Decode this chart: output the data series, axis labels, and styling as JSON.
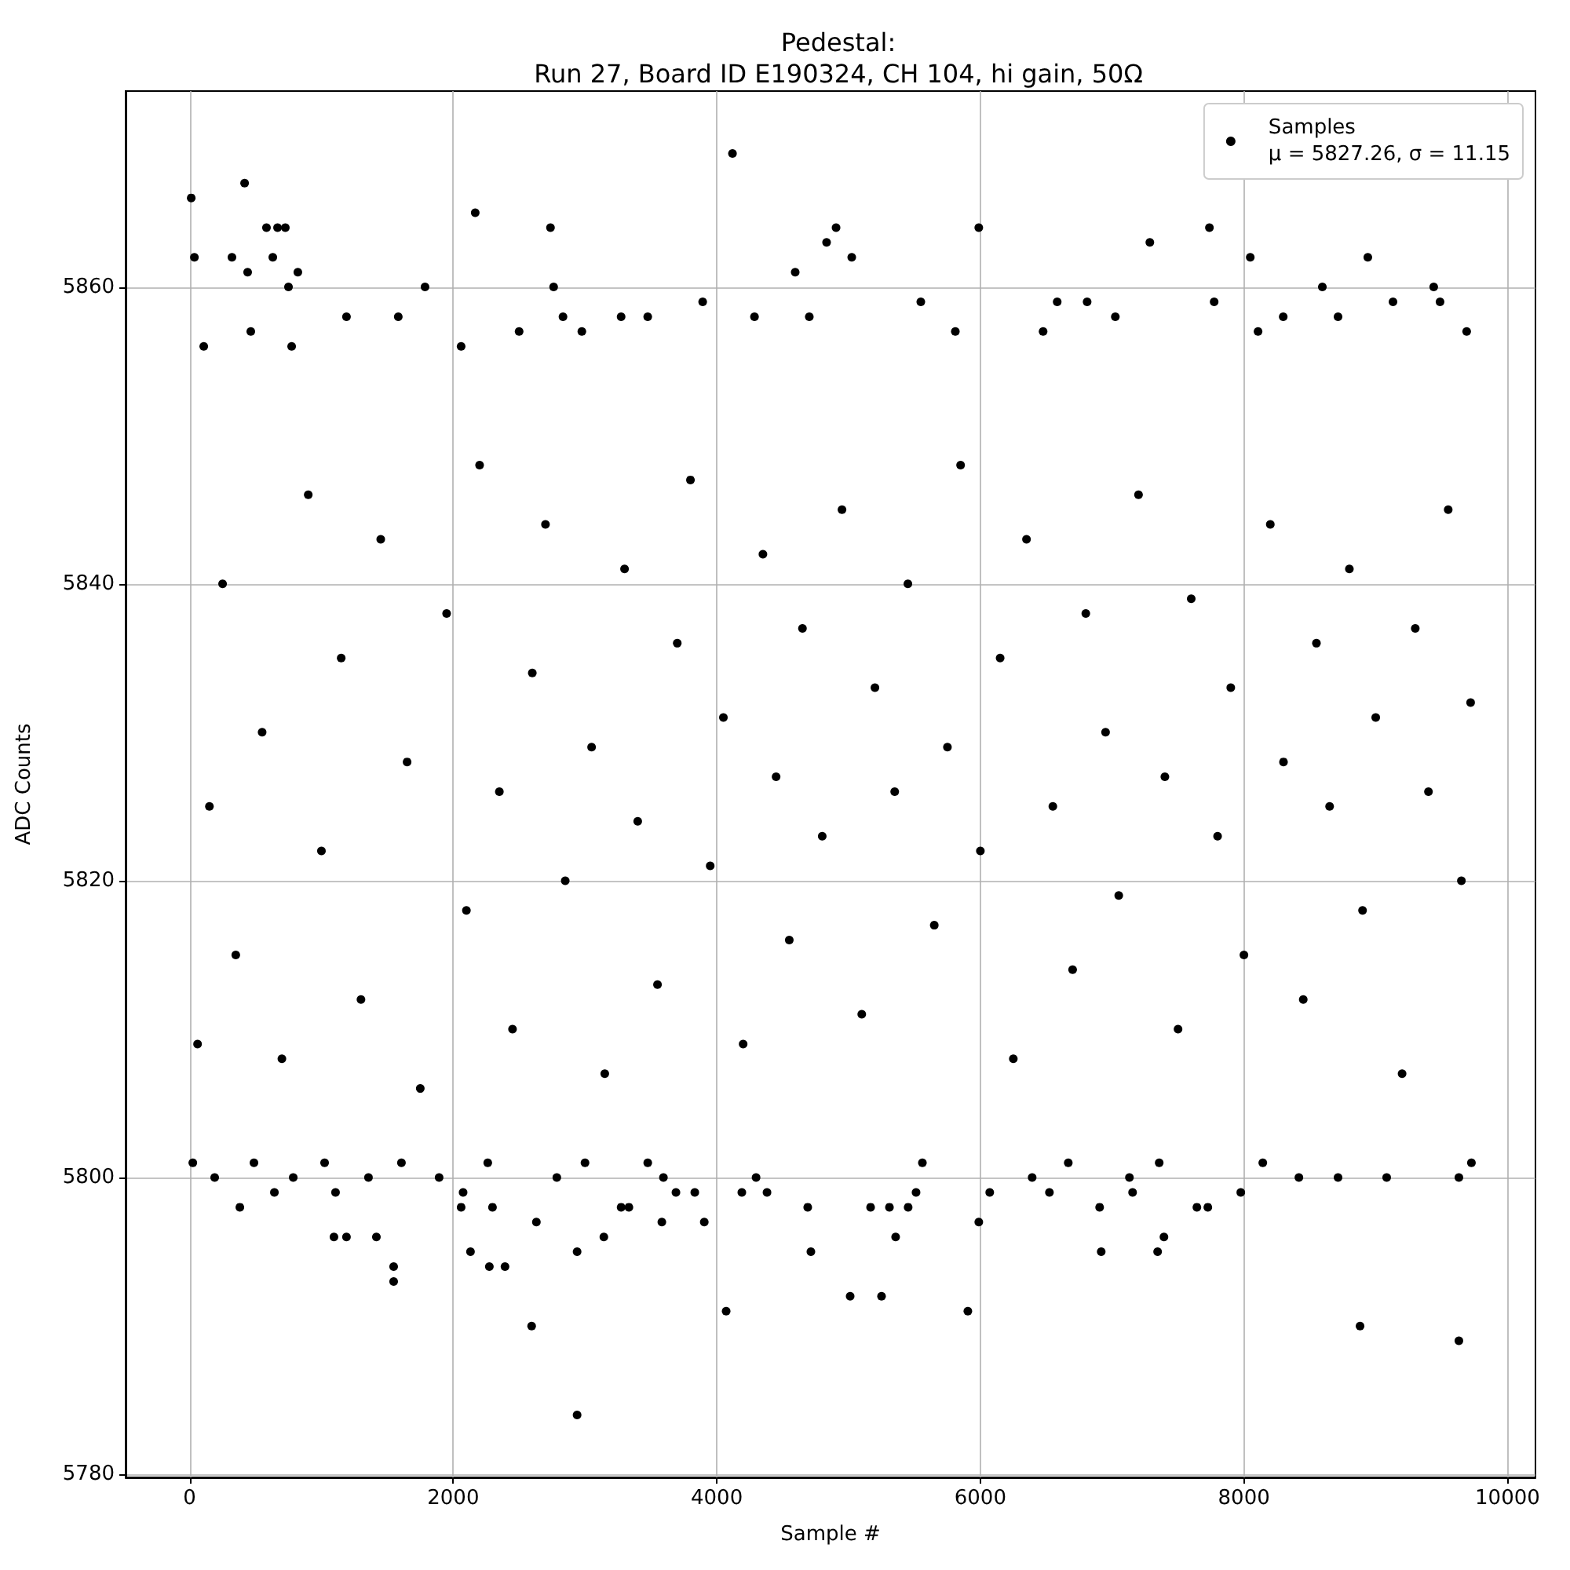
{
  "chart_data": {
    "type": "scatter",
    "title": "Pedestal:\nRun 27, Board ID E190324, CH 104, hi gain, 50Ω",
    "xlabel": "Sample #",
    "ylabel": "ADC Counts",
    "x": [
      12,
      36,
      107,
      321,
      417,
      440,
      464,
      583,
      631,
      667,
      726,
      750,
      774,
      821,
      1190,
      1583,
      1786,
      2060,
      2167,
      2500,
      2738,
      2762,
      2833,
      2976,
      3274,
      3476,
      3893,
      4119,
      4286,
      4595,
      4702,
      4833,
      4905,
      5024,
      5548,
      5810,
      5988,
      6476,
      6583,
      6810,
      7024,
      7286,
      7738,
      7774,
      8048,
      8107,
      8298,
      8595,
      8714,
      8940,
      9131,
      9440,
      9488,
      9690,
      60,
      150,
      250,
      350,
      550,
      700,
      900,
      1000,
      1150,
      1300,
      1450,
      1650,
      1750,
      1950,
      2100,
      2200,
      2350,
      2450,
      2600,
      2700,
      2850,
      3050,
      3150,
      3300,
      3400,
      3550,
      3700,
      3800,
      3950,
      4050,
      4200,
      4350,
      4450,
      4550,
      4650,
      4800,
      4950,
      5100,
      5200,
      5350,
      5450,
      5650,
      5750,
      5850,
      6000,
      6150,
      6250,
      6350,
      6550,
      6700,
      6800,
      6950,
      7050,
      7200,
      7400,
      7500,
      7600,
      7800,
      7900,
      8000,
      8200,
      8300,
      8450,
      8550,
      8650,
      8800,
      8900,
      9000,
      9200,
      9300,
      9400,
      9550,
      9650,
      9720,
      24,
      190,
      381,
      488,
      643,
      786,
      1024,
      1095,
      1107,
      1190,
      1357,
      1417,
      1548,
      1548,
      1607,
      1893,
      2060,
      2075,
      2131,
      2262,
      2274,
      2298,
      2393,
      2595,
      2631,
      2786,
      2940,
      2940,
      3000,
      3143,
      3274,
      3333,
      3476,
      3583,
      3595,
      3690,
      3833,
      3905,
      4071,
      4190,
      4298,
      4381,
      4690,
      4714,
      5012,
      5167,
      5250,
      5310,
      5357,
      5452,
      5512,
      5560,
      5905,
      5988,
      6071,
      6393,
      6524,
      6667,
      6905,
      6917,
      7131,
      7155,
      7345,
      7357,
      7393,
      7643,
      7726,
      7976,
      8143,
      8417,
      8714,
      8881,
      9083,
      9631,
      9631,
      9726
    ],
    "series": [
      {
        "name": "Samples\nμ = 5827.26, σ = 11.15",
        "color": "#000000",
        "values": [
          5866,
          5862,
          5856,
          5862,
          5867,
          5861,
          5857,
          5864,
          5862,
          5864,
          5864,
          5860,
          5856,
          5861,
          5858,
          5858,
          5860,
          5856,
          5865,
          5857,
          5864,
          5860,
          5858,
          5857,
          5858,
          5858,
          5859,
          5869,
          5858,
          5861,
          5858,
          5863,
          5864,
          5862,
          5859,
          5857,
          5864,
          5857,
          5859,
          5859,
          5858,
          5863,
          5864,
          5859,
          5862,
          5857,
          5858,
          5860,
          5858,
          5862,
          5859,
          5860,
          5859,
          5857,
          5809,
          5825,
          5840,
          5815,
          5830,
          5808,
          5846,
          5822,
          5835,
          5812,
          5843,
          5828,
          5806,
          5838,
          5818,
          5848,
          5826,
          5810,
          5834,
          5844,
          5820,
          5829,
          5807,
          5841,
          5824,
          5813,
          5836,
          5847,
          5821,
          5831,
          5809,
          5842,
          5827,
          5816,
          5837,
          5823,
          5845,
          5811,
          5833,
          5826,
          5840,
          5817,
          5829,
          5848,
          5822,
          5835,
          5808,
          5843,
          5825,
          5814,
          5838,
          5830,
          5819,
          5846,
          5827,
          5810,
          5839,
          5823,
          5833,
          5815,
          5844,
          5828,
          5812,
          5836,
          5825,
          5841,
          5818,
          5831,
          5807,
          5837,
          5826,
          5845,
          5820,
          5832,
          5801,
          5800,
          5798,
          5801,
          5799,
          5800,
          5801,
          5796,
          5799,
          5796,
          5800,
          5796,
          5794,
          5793,
          5801,
          5800,
          5798,
          5799,
          5795,
          5801,
          5794,
          5798,
          5794,
          5790,
          5797,
          5800,
          5784,
          5795,
          5801,
          5796,
          5798,
          5798,
          5801,
          5797,
          5800,
          5799,
          5799,
          5797,
          5791,
          5799,
          5800,
          5799,
          5798,
          5795,
          5792,
          5798,
          5792,
          5798,
          5796,
          5798,
          5799,
          5801,
          5791,
          5797,
          5799,
          5800,
          5799,
          5801,
          5798,
          5795,
          5800,
          5799,
          5795,
          5801,
          5796,
          5798,
          5798,
          5799,
          5801,
          5800,
          5800,
          5790,
          5800,
          5789,
          5800,
          5801
        ]
      }
    ],
    "xlim": [
      -486,
      10212
    ],
    "xticks": [
      0,
      2000,
      4000,
      6000,
      8000,
      10000
    ],
    "ylim": [
      5779.8,
      5873.2
    ],
    "yticks": [
      5780,
      5800,
      5820,
      5840,
      5860
    ],
    "grid": true,
    "legend": "top right",
    "marker": "circle"
  }
}
